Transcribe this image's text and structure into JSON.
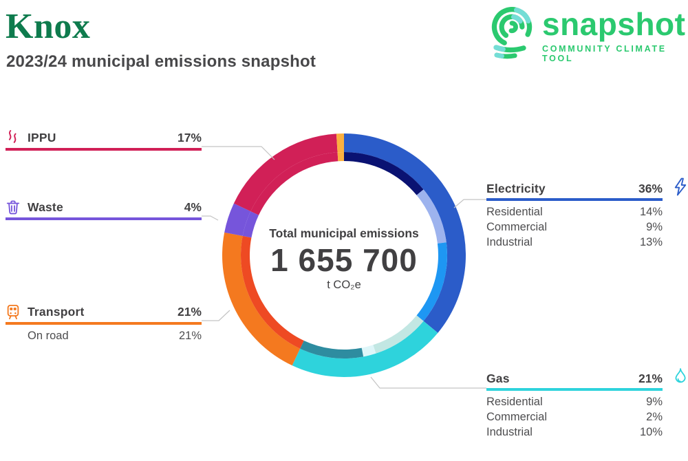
{
  "header": {
    "municipality": "Knox",
    "subtitle": "2023/24 municipal emissions snapshot",
    "title_color": "#0E7B4D"
  },
  "logo": {
    "wordmark": "snapshot",
    "tagline": "COMMUNITY CLIMATE TOOL",
    "green": "#2BC96F",
    "cyan": "#74DDD6"
  },
  "donut_center": {
    "label": "Total municipal emissions",
    "value": "1 655 700",
    "unit": "t CO₂e"
  },
  "chart_data": {
    "type": "donut",
    "title": "Total municipal emissions",
    "total": 1655700,
    "total_display": "1 655 700",
    "unit": "t CO2e",
    "start_angle_deg": 0,
    "direction": "clockwise",
    "rings": [
      "sector (outer)",
      "subsector (inner)"
    ],
    "connector_color": "#C4C4C4",
    "categories": [
      {
        "name": "Electricity",
        "pct": 36,
        "color": "#2B5CC9",
        "icon": "lightning-bolt-icon",
        "subsectors": [
          {
            "name": "Residential",
            "pct": 14,
            "color": "#0A1272"
          },
          {
            "name": "Commercial",
            "pct": 9,
            "color": "#9DB3EE"
          },
          {
            "name": "Industrial",
            "pct": 13,
            "color": "#1E97F3"
          }
        ]
      },
      {
        "name": "Gas",
        "pct": 21,
        "color": "#2ED3DC",
        "icon": "flame-icon",
        "subsectors": [
          {
            "name": "Residential",
            "pct": 9,
            "color": "#C2E7E3"
          },
          {
            "name": "Commercial",
            "pct": 2,
            "color": "#DEF6F9"
          },
          {
            "name": "Industrial",
            "pct": 10,
            "color": "#2E8CA0"
          }
        ]
      },
      {
        "name": "Transport",
        "pct": 21,
        "color": "#F4791F",
        "icon": "tram-icon",
        "subsectors": [
          {
            "name": "On road",
            "pct": 21,
            "color": "#EE4A23"
          }
        ]
      },
      {
        "name": "Waste",
        "pct": 4,
        "color": "#7655DB",
        "icon": "trash-can-icon",
        "subsectors": []
      },
      {
        "name": "IPPU",
        "pct": 17,
        "color": "#D12057",
        "icon": "smoke-icon",
        "subsectors": []
      },
      {
        "name": "",
        "pct": 1,
        "color": "#FBB040",
        "icon": "",
        "subsectors": []
      }
    ]
  }
}
